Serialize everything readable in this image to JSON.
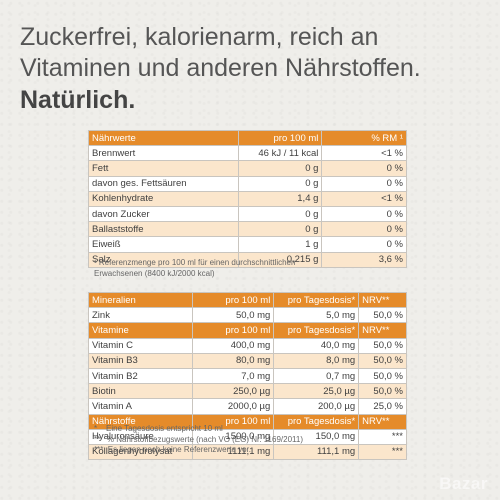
{
  "headline": {
    "line1": "Zuckerfrei, kalorienarm, reich an",
    "line2": "Vitaminen und anderen Nährstoffen.",
    "line3": "Natürlich."
  },
  "nutrition": {
    "header": [
      "Nährwerte",
      "pro 100 ml",
      "% RM ¹"
    ],
    "rows": [
      [
        "Brennwert",
        "46 kJ / 11 kcal",
        "<1 %"
      ],
      [
        "Fett",
        "0 g",
        "0 %"
      ],
      [
        "davon ges. Fettsäuren",
        "0 g",
        "0 %"
      ],
      [
        "Kohlenhydrate",
        "1,4 g",
        "<1 %"
      ],
      [
        "davon Zucker",
        "0 g",
        "0 %"
      ],
      [
        "Ballaststoffe",
        "0 g",
        "0 %"
      ],
      [
        "Eiweiß",
        "1 g",
        "0 %"
      ],
      [
        "Salz",
        "0,215 g",
        "3,6 %"
      ]
    ]
  },
  "reference_note": "¹ Referenzmenge pro 100 ml für einen durchschnittlichen Erwachsenen (8400 kJ/2000 kcal)",
  "minerals": {
    "header": [
      "Mineralien",
      "pro 100 ml",
      "pro Tagesdosis*",
      "NRV**"
    ],
    "rows": [
      [
        "Zink",
        "50,0 mg",
        "5,0 mg",
        "50,0 %"
      ]
    ]
  },
  "vitamins": {
    "header": [
      "Vitamine",
      "pro 100 ml",
      "pro Tagesdosis*",
      "NRV**"
    ],
    "rows": [
      [
        "Vitamin C",
        "400,0 mg",
        "40,0 mg",
        "50,0 %"
      ],
      [
        "Vitamin B3",
        "80,0 mg",
        "8,0 mg",
        "50,0 %"
      ],
      [
        "Vitamin B2",
        "7,0 mg",
        "0,7 mg",
        "50,0 %"
      ],
      [
        "Biotin",
        "250,0 µg",
        "25,0 µg",
        "50,0 %"
      ],
      [
        "Vitamin A",
        "2000,0 µg",
        "200,0 µg",
        "25,0 %"
      ]
    ]
  },
  "nutrients": {
    "header": [
      "Nährstoffe",
      "pro 100 ml",
      "pro Tagesdosis*",
      "NRV**"
    ],
    "rows": [
      [
        "Hyaluronsäure",
        "1500,0 mg",
        "150,0 mg",
        "***"
      ],
      [
        "Kollagenhydrolysat",
        "1111,1 mg",
        "111,1 mg",
        "***"
      ]
    ]
  },
  "footnotes": [
    "*    Eine Tagesdosis entspricht 10 ml",
    "**   % Nährstoffbezugswerte (nach VO (EG) Nr. 1169/2011)",
    "***  Es liegen noch keine Referenzwerte vor."
  ],
  "watermark": "Bazar"
}
